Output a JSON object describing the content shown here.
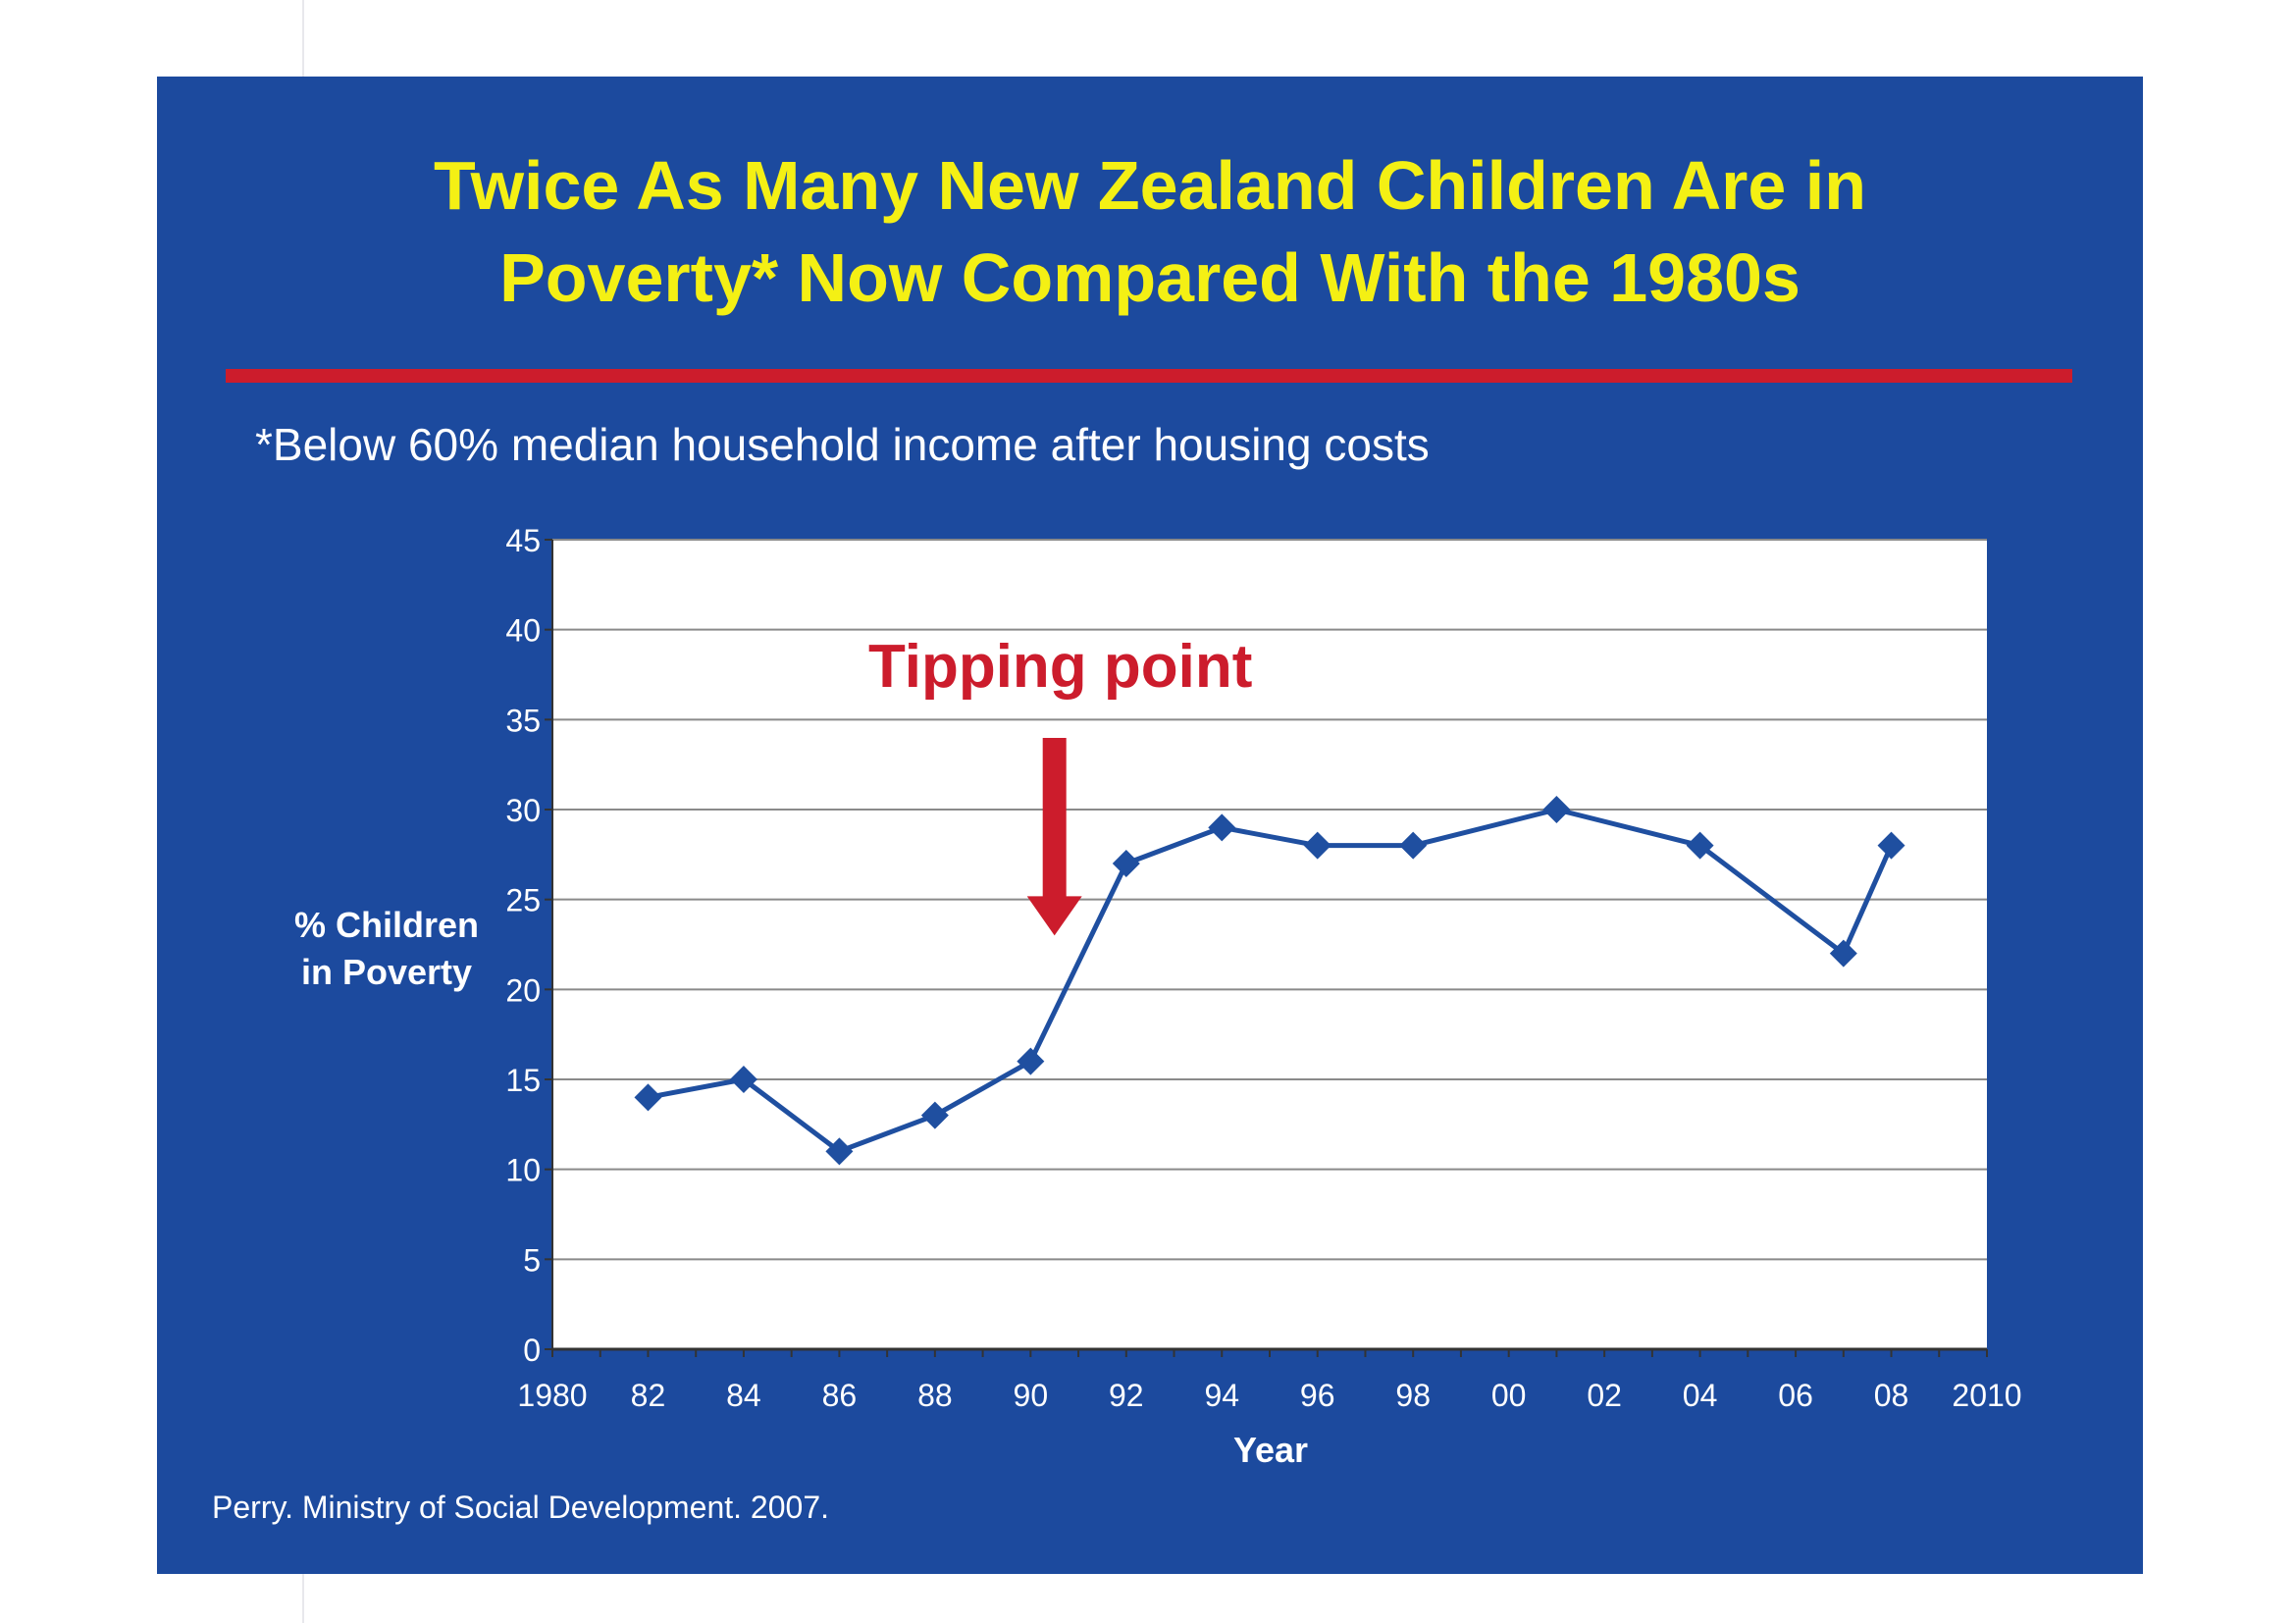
{
  "slide": {
    "title_line1": "Twice As Many New Zealand Children Are in",
    "title_line2": "Poverty* Now Compared With the 1980s",
    "subtitle": "*Below 60% median household income after housing costs",
    "source": "Perry. Ministry of Social Development. 2007."
  },
  "colors": {
    "background": "#1c4a9e",
    "title": "#f4f014",
    "rule": "#cc1c2c",
    "series_line": "#1f4fa0",
    "annotation": "#cc1c2c"
  },
  "chart_data": {
    "type": "line",
    "title": "",
    "xlabel": "Year",
    "ylabel_line1": "% Children",
    "ylabel_line2": "in Poverty",
    "xlim": [
      1980,
      2010
    ],
    "ylim": [
      0,
      45
    ],
    "grid": true,
    "x_ticks": [
      {
        "value": 1980,
        "label": "1980"
      },
      {
        "value": 1982,
        "label": "82"
      },
      {
        "value": 1984,
        "label": "84"
      },
      {
        "value": 1986,
        "label": "86"
      },
      {
        "value": 1988,
        "label": "88"
      },
      {
        "value": 1990,
        "label": "90"
      },
      {
        "value": 1992,
        "label": "92"
      },
      {
        "value": 1994,
        "label": "94"
      },
      {
        "value": 1996,
        "label": "96"
      },
      {
        "value": 1998,
        "label": "98"
      },
      {
        "value": 2000,
        "label": "00"
      },
      {
        "value": 2002,
        "label": "02"
      },
      {
        "value": 2004,
        "label": "04"
      },
      {
        "value": 2006,
        "label": "06"
      },
      {
        "value": 2008,
        "label": "08"
      },
      {
        "value": 2010,
        "label": "2010"
      }
    ],
    "y_ticks": [
      "0",
      "5",
      "10",
      "15",
      "20",
      "25",
      "30",
      "35",
      "40",
      "45"
    ],
    "series": [
      {
        "x": [
          1982,
          1984,
          1986,
          1988,
          1990,
          1992,
          1994,
          1996,
          1998,
          2001,
          2004,
          2007,
          2008
        ],
        "values": [
          14,
          15,
          11,
          13,
          16,
          27,
          29,
          28,
          28,
          30,
          28,
          22,
          28
        ]
      }
    ],
    "annotation": {
      "text": "Tipping point",
      "x": 1990.5,
      "arrow_tip_y": 23
    }
  }
}
